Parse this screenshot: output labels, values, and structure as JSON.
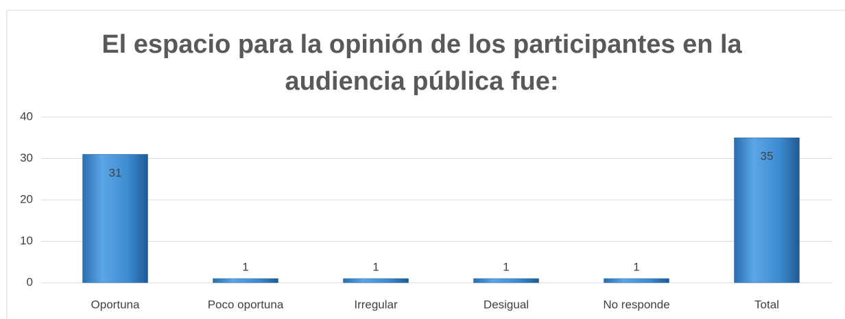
{
  "chart_data": {
    "type": "bar",
    "title": "El espacio para la opinión  de los participantes en la audiencia pública fue:",
    "categories": [
      "Oportuna",
      "Poco oportuna",
      "Irregular",
      "Desigual",
      "No responde",
      "Total"
    ],
    "values": [
      31,
      1,
      1,
      1,
      1,
      35
    ],
    "color": "#3d85c6",
    "ylim": [
      0,
      40
    ],
    "yticks": [
      0,
      10,
      20,
      30,
      40
    ],
    "grid": true
  }
}
